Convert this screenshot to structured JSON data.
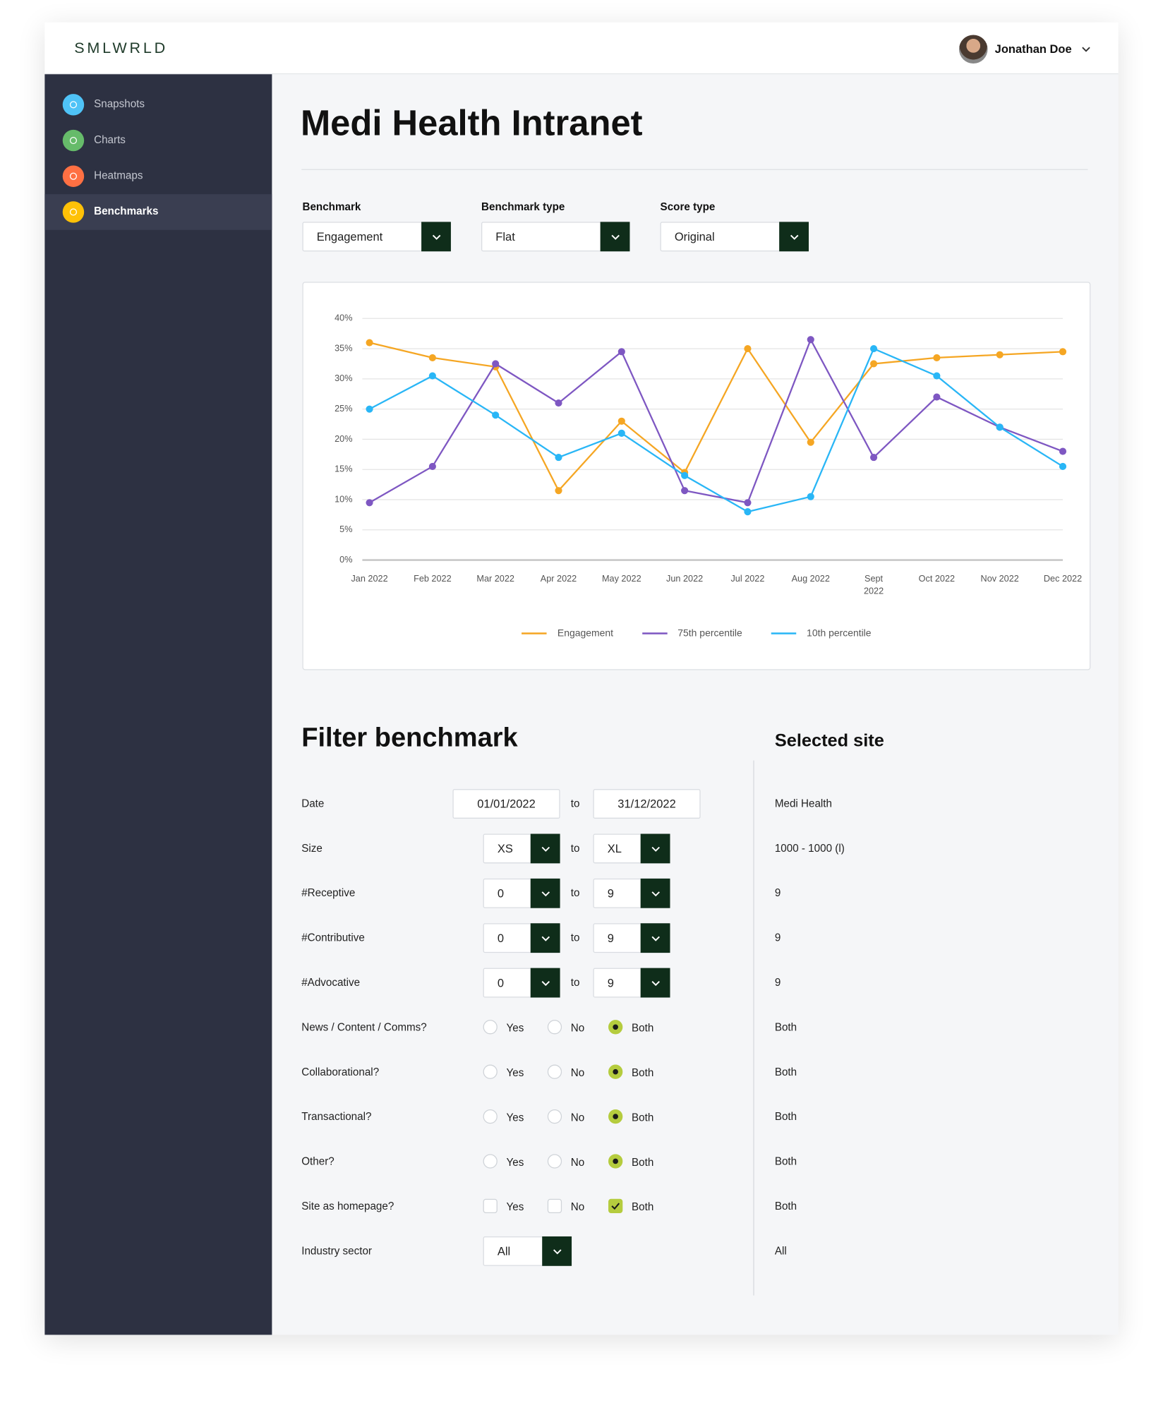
{
  "header": {
    "logo": "SMLWRLD",
    "user": "Jonathan Doe"
  },
  "nav": [
    "Snapshots",
    "Charts",
    "Heatmaps",
    "Benchmarks"
  ],
  "title": "Medi Health Intranet",
  "controls": [
    {
      "label": "Benchmark",
      "value": "Engagement"
    },
    {
      "label": "Benchmark type",
      "value": "Flat"
    },
    {
      "label": "Score type",
      "value": "Original"
    }
  ],
  "chart_data": {
    "type": "line",
    "categories": [
      "Jan 2022",
      "Feb 2022",
      "Mar 2022",
      "Apr 2022",
      "May 2022",
      "Jun 2022",
      "Jul 2022",
      "Aug 2022",
      "Sept 2022",
      "Oct 2022",
      "Nov 2022",
      "Dec 2022"
    ],
    "series": [
      {
        "name": "Engagement",
        "color": "#f5a623",
        "values": [
          36,
          33.5,
          32,
          11.5,
          23,
          14.5,
          35,
          19.5,
          32.5,
          33.5,
          34,
          34.5
        ]
      },
      {
        "name": "75th percentile",
        "color": "#7e57c2",
        "values": [
          9.5,
          15.5,
          32.5,
          26,
          34.5,
          11.5,
          9.5,
          36.5,
          17,
          27,
          22,
          18
        ]
      },
      {
        "name": "10th percentile",
        "color": "#29b6f6",
        "values": [
          25,
          30.5,
          24,
          17,
          21,
          14,
          8,
          10.5,
          35,
          30.5,
          22,
          15.5
        ]
      }
    ],
    "ylim": [
      0,
      40
    ],
    "yticks": [
      {
        "value": 0,
        "label": "0%"
      },
      {
        "value": 5,
        "label": "5%"
      },
      {
        "value": 10,
        "label": "10%"
      },
      {
        "value": 15,
        "label": "15%"
      },
      {
        "value": 20,
        "label": "20%"
      },
      {
        "value": 25,
        "label": "25%"
      },
      {
        "value": 30,
        "label": "30%"
      },
      {
        "value": 35,
        "label": "35%"
      },
      {
        "value": 40,
        "label": "40%"
      }
    ],
    "grid": true
  },
  "filter": {
    "title": "Filter benchmark",
    "site_title": "Selected site",
    "to": "to",
    "options": [
      "Yes",
      "No",
      "Both"
    ],
    "date": {
      "label": "Date",
      "from": "01/01/2022",
      "until": "31/12/2022",
      "site": "Medi Health"
    },
    "ranges": [
      {
        "label": "Size",
        "from": "XS",
        "until": "XL",
        "site": "1000 - 1000 (l)"
      },
      {
        "label": "#Receptive",
        "from": 0,
        "until": 9,
        "site": 9
      },
      {
        "label": "#Contributive",
        "from": 0,
        "until": 9,
        "site": 9
      },
      {
        "label": "#Advocative",
        "from": 0,
        "until": 9,
        "site": 9
      }
    ],
    "choices": [
      {
        "label": "News / Content / Comms?",
        "selected": "Both",
        "site": "Both"
      },
      {
        "label": "Collaborational?",
        "selected": "Both",
        "site": "Both"
      },
      {
        "label": "Transactional?",
        "selected": "Both",
        "site": "Both"
      },
      {
        "label": "Other?",
        "selected": "Both",
        "site": "Both"
      }
    ],
    "checks": [
      {
        "label": "Site as homepage?",
        "selected": "Both",
        "site": "Both"
      }
    ],
    "sector": {
      "label": "Industry sector",
      "value": "All",
      "site": "All"
    }
  }
}
